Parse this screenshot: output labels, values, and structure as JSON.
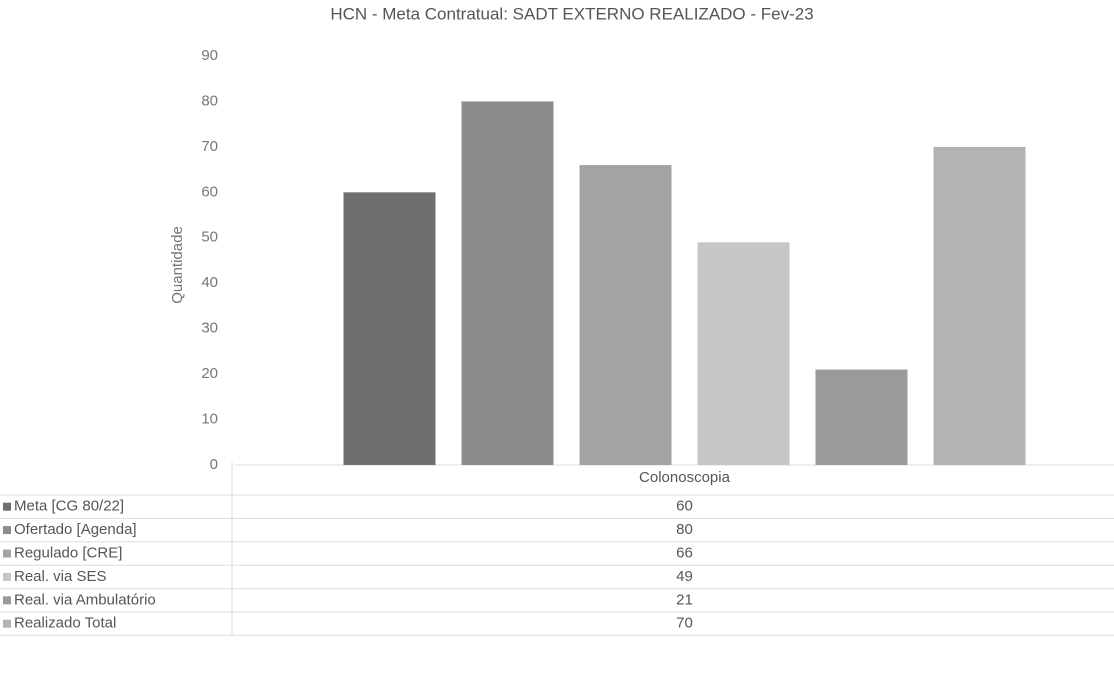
{
  "chart_data": {
    "type": "bar",
    "title": "HCN - Meta Contratual: SADT EXTERNO REALIZADO - Fev-23",
    "y_label": "Quantidade",
    "categories": [
      "Colonoscopia"
    ],
    "series": [
      {
        "name": "Meta [CG 80/22]",
        "color": "#6f6f6f",
        "values": [
          60
        ]
      },
      {
        "name": "Ofertado [Agenda]",
        "color": "#8c8c8c",
        "values": [
          80
        ]
      },
      {
        "name": "Regulado [CRE]",
        "color": "#a3a3a3",
        "values": [
          66
        ]
      },
      {
        "name": "Real. via SES",
        "color": "#c6c6c6",
        "values": [
          49
        ]
      },
      {
        "name": "Real. via Ambulatório",
        "color": "#9a9a9a",
        "values": [
          21
        ]
      },
      {
        "name": "Realizado Total",
        "color": "#b3b3b3",
        "values": [
          70
        ]
      }
    ],
    "ylim": [
      0,
      90
    ],
    "yticks": [
      0,
      10,
      20,
      30,
      40,
      50,
      60,
      70,
      80,
      90
    ],
    "data_table": true
  }
}
